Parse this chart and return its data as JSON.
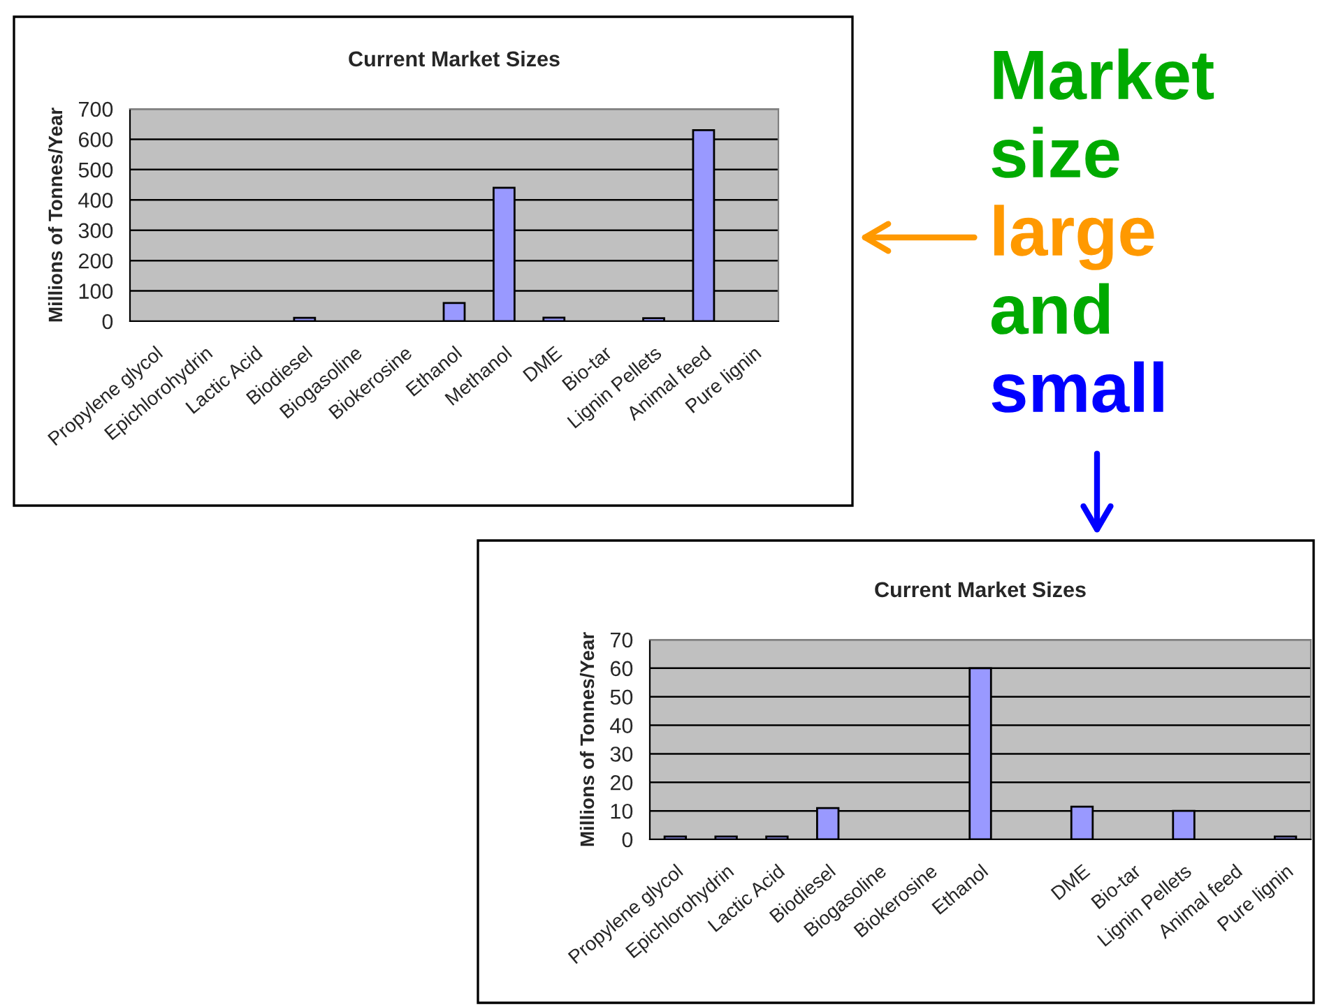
{
  "chart_data": [
    {
      "type": "bar",
      "title": "Current Market Sizes",
      "ylabel": "Millions of Tonnes/Year",
      "categories": [
        "Propylene glycol",
        "Epichlorohydrin",
        "Lactic Acid",
        "Biodiesel",
        "Biogasoline",
        "Biokerosine",
        "Ethanol",
        "Methanol",
        "DME",
        "Bio-tar",
        "Lignin Pellets",
        "Animal feed",
        "Pure lignin"
      ],
      "values": [
        null,
        null,
        null,
        11,
        null,
        null,
        60,
        440,
        12,
        null,
        10,
        630,
        null
      ],
      "color": "#9999ff",
      "ylim": [
        0,
        700
      ],
      "yticks": [
        0,
        100,
        200,
        300,
        400,
        500,
        600,
        700
      ],
      "grid": "y",
      "annotations": [
        "Market",
        "size",
        "large",
        "and",
        "small"
      ]
    },
    {
      "type": "bar",
      "title": "Current Market Sizes",
      "ylabel": "Millions of Tonnes/Year",
      "categories": [
        "Propylene glycol",
        "Epichlorohydrin",
        "Lactic Acid",
        "Biodiesel",
        "Biogasoline",
        "Biokerosine",
        "Ethanol",
        null,
        "DME",
        "Bio-tar",
        "Lignin Pellets",
        "Animal feed",
        "Pure lignin"
      ],
      "values": [
        1,
        1,
        1,
        11,
        null,
        null,
        60,
        null,
        11.5,
        null,
        10,
        null,
        1
      ],
      "color": "#9999ff",
      "ylim": [
        0,
        70
      ],
      "yticks": [
        0,
        10,
        20,
        30,
        40,
        50,
        60,
        70
      ],
      "grid": "y"
    }
  ]
}
